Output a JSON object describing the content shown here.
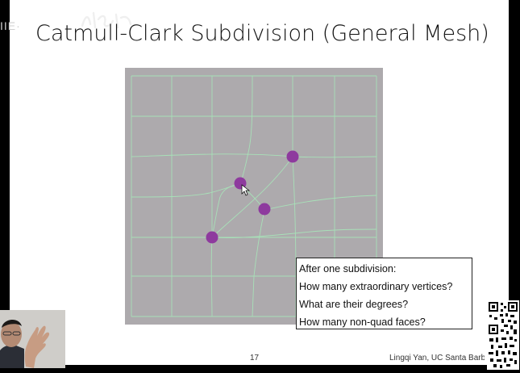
{
  "slide": {
    "title": "Catmull-Clark Subdivision (General Mesh)",
    "question_box": {
      "lines": [
        "After one subdivision:",
        "How many extraordinary vertices?",
        "What are their degrees?",
        "How many non-quad faces?"
      ]
    },
    "page_number": "17",
    "footer": "Lingqi Yan, UC Santa Barbara"
  },
  "overlay": {
    "watermark_text": "IIE·",
    "presenter_label": "presenter webcam"
  },
  "colors": {
    "mesh_background": "#adaaad",
    "mesh_lines": "#a8e0b8",
    "vertex_marker": "#8e3a9e",
    "slide_background": "#ffffff",
    "frame": "#000000"
  }
}
